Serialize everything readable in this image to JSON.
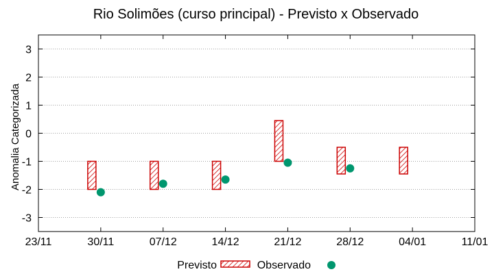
{
  "chart_data": {
    "type": "range-bar-scatter",
    "title": "Rio Solimões (curso principal) - Previsto x Observado",
    "xlabel": "",
    "ylabel": "Anomalia Categorizada",
    "ylim": [
      -3.5,
      3.5
    ],
    "yticks": [
      "3",
      "2",
      "1",
      "0",
      "-1",
      "-2",
      "-3"
    ],
    "ytick_values": [
      3,
      2,
      1,
      0,
      -1,
      -2,
      -3
    ],
    "xticks": [
      "23/11",
      "30/11",
      "07/12",
      "14/12",
      "21/12",
      "28/12",
      "04/01",
      "11/01"
    ],
    "grid": true,
    "legend": "bottom",
    "series": [
      {
        "name": "Previsto",
        "style": "hatched-box",
        "color": "#cc0000",
        "ranges": [
          {
            "x": "29/11",
            "low": -2.0,
            "high": -1.0
          },
          {
            "x": "06/12",
            "low": -2.0,
            "high": -1.0
          },
          {
            "x": "13/12",
            "low": -2.0,
            "high": -1.0
          },
          {
            "x": "20/12",
            "low": -1.0,
            "high": 0.45
          },
          {
            "x": "27/12",
            "low": -1.45,
            "high": -0.5
          },
          {
            "x": "03/01",
            "low": -1.45,
            "high": -0.5
          }
        ]
      },
      {
        "name": "Observado",
        "style": "point",
        "color": "#00966e",
        "points": [
          {
            "x": "30/11",
            "y": -2.1
          },
          {
            "x": "07/12",
            "y": -1.8
          },
          {
            "x": "14/12",
            "y": -1.65
          },
          {
            "x": "21/12",
            "y": -1.05
          },
          {
            "x": "28/12",
            "y": -1.25
          }
        ]
      }
    ]
  }
}
